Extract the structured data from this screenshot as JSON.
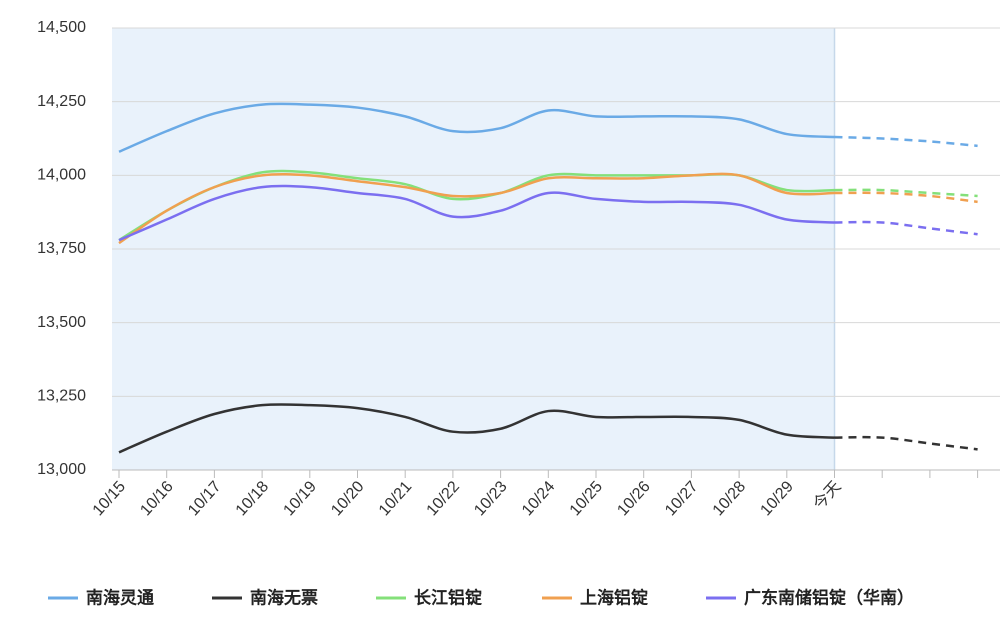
{
  "chart_data": {
    "type": "line",
    "categories": [
      "10/15",
      "10/16",
      "10/17",
      "10/18",
      "10/19",
      "10/20",
      "10/21",
      "10/22",
      "10/23",
      "10/24",
      "10/25",
      "10/26",
      "10/27",
      "10/28",
      "10/29",
      "今天",
      null,
      null,
      null
    ],
    "ylim": [
      13000,
      14500
    ],
    "yticks": [
      {
        "value": 13000,
        "label": "13,000"
      },
      {
        "value": 13250,
        "label": "13,250"
      },
      {
        "value": 13500,
        "label": "13,500"
      },
      {
        "value": 13750,
        "label": "13,750"
      },
      {
        "value": 14000,
        "label": "14,000"
      },
      {
        "value": 14250,
        "label": "14,250"
      },
      {
        "value": 14500,
        "label": "14,500"
      }
    ],
    "grid": true,
    "series": [
      {
        "name": "南海灵通",
        "color": "#6aaae6",
        "values": [
          14080,
          14150,
          14210,
          14240,
          14240,
          14230,
          14200,
          14150,
          14160,
          14220,
          14200,
          14200,
          14200,
          14190,
          14140,
          14130,
          14125,
          14115,
          14100
        ]
      },
      {
        "name": "南海无票",
        "color": "#333333",
        "values": [
          13060,
          13130,
          13190,
          13220,
          13220,
          13210,
          13180,
          13130,
          13140,
          13200,
          13180,
          13180,
          13180,
          13170,
          13120,
          13110,
          13110,
          13090,
          13070
        ]
      },
      {
        "name": "长江铝锭",
        "color": "#84e07a",
        "values": [
          13780,
          13880,
          13960,
          14010,
          14010,
          13990,
          13970,
          13920,
          13940,
          14000,
          14000,
          14000,
          14000,
          14000,
          13950,
          13950,
          13950,
          13940,
          13930
        ]
      },
      {
        "name": "上海铝锭",
        "color": "#f0a050",
        "values": [
          13770,
          13880,
          13960,
          14000,
          14000,
          13980,
          13960,
          13930,
          13940,
          13990,
          13990,
          13990,
          14000,
          14000,
          13940,
          13940,
          13940,
          13930,
          13910
        ]
      },
      {
        "name": "广东南储铝锭（华南）",
        "color": "#7b6ff0",
        "values": [
          13780,
          13850,
          13920,
          13960,
          13960,
          13940,
          13920,
          13860,
          13880,
          13940,
          13920,
          13910,
          13910,
          13900,
          13850,
          13840,
          13840,
          13820,
          13800
        ]
      }
    ]
  }
}
